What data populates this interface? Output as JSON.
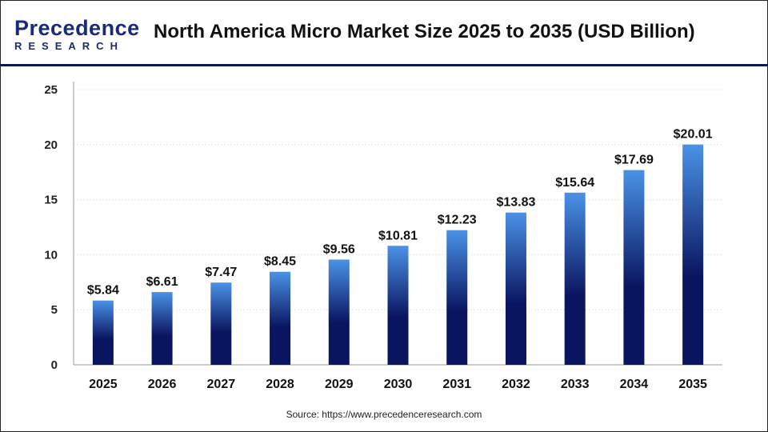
{
  "logo": {
    "main": "Precedence",
    "sub": "RESEARCH"
  },
  "source": "Source: https://www.precedenceresearch.com",
  "colors": {
    "bar_top": "#4a92e6",
    "bar_bottom": "#0a1560",
    "header_rule": "#0d1650"
  },
  "chart_data": {
    "type": "bar",
    "title": "North America Micro Market Size 2025 to 2035 (USD Billion)",
    "categories": [
      "2025",
      "2026",
      "2027",
      "2028",
      "2029",
      "2030",
      "2031",
      "2032",
      "2033",
      "2034",
      "2035"
    ],
    "values": [
      5.84,
      6.61,
      7.47,
      8.45,
      9.56,
      10.81,
      12.23,
      13.83,
      15.64,
      17.69,
      20.01
    ],
    "data_labels": [
      "$5.84",
      "$6.61",
      "$7.47",
      "$8.45",
      "$9.56",
      "$10.81",
      "$12.23",
      "$13.83",
      "$15.64",
      "$17.69",
      "$20.01"
    ],
    "ylim": [
      0,
      25
    ],
    "yticks": [
      0,
      5,
      10,
      15,
      20,
      25
    ],
    "grid": true,
    "xlabel": "",
    "ylabel": ""
  }
}
